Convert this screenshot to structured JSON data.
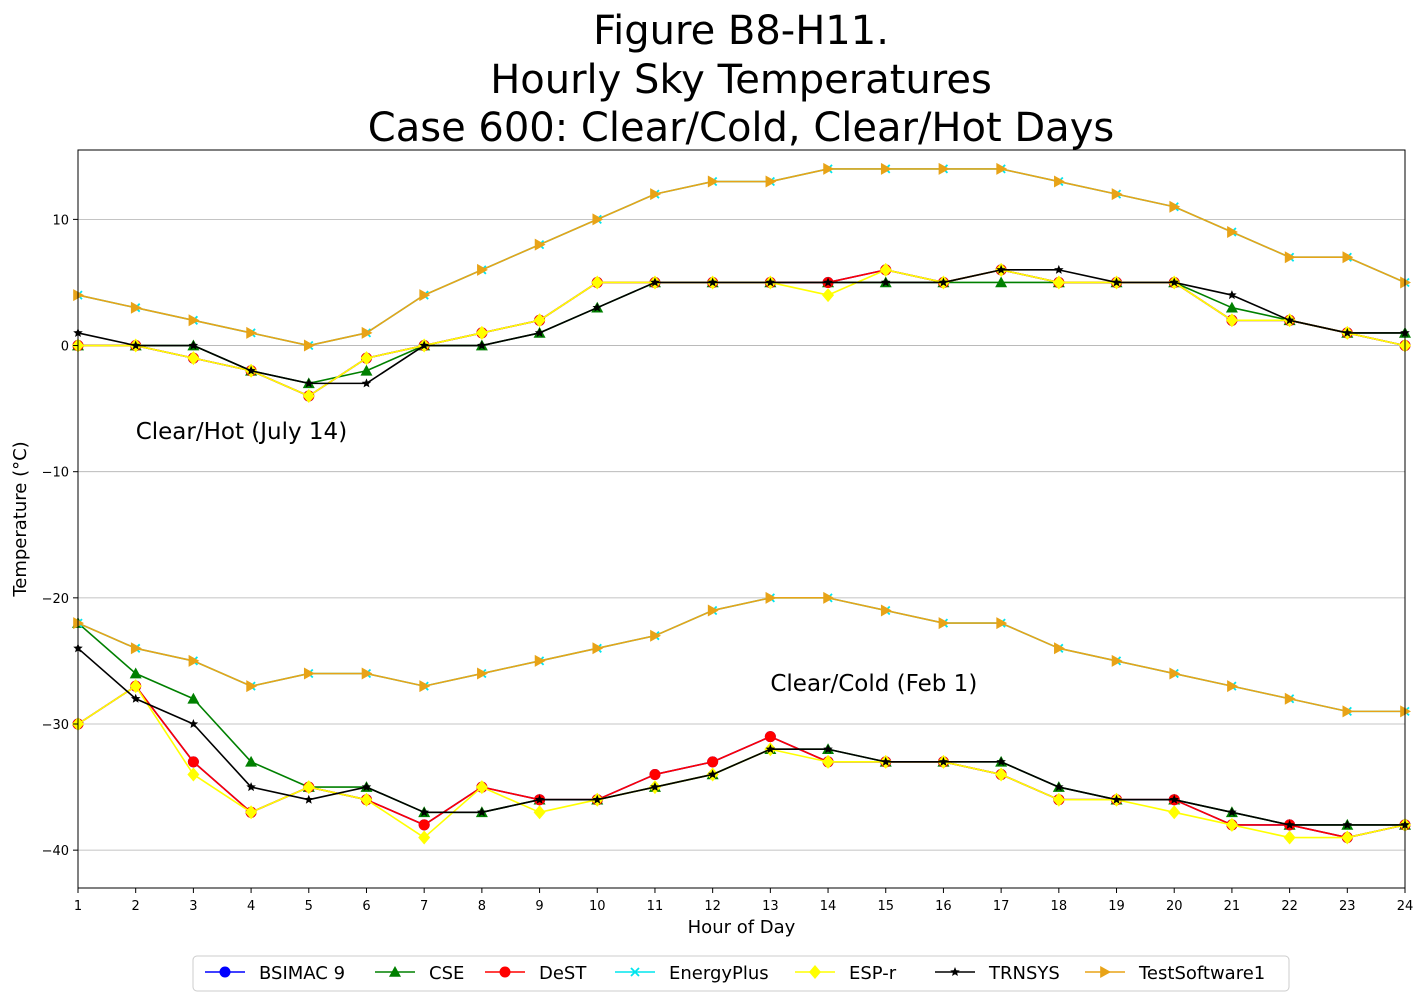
{
  "chart_data": {
    "type": "line",
    "title_lines": [
      "Figure B8-H11.",
      "Hourly Sky Temperatures",
      "Case 600: Clear/Cold, Clear/Hot Days"
    ],
    "xlabel": "Hour of Day",
    "ylabel": "Temperature (°C)",
    "xlim": [
      1,
      24
    ],
    "ylim": [
      -43,
      15.5
    ],
    "xticks": [
      1,
      2,
      3,
      4,
      5,
      6,
      7,
      8,
      9,
      10,
      11,
      12,
      13,
      14,
      15,
      16,
      17,
      18,
      19,
      20,
      21,
      22,
      23,
      24
    ],
    "yticks": [
      10,
      0,
      -10,
      -20,
      -30,
      -40
    ],
    "ytick_labels": [
      "10",
      "0",
      "−10",
      "−20",
      "−30",
      "−40"
    ],
    "grid": "horizontal",
    "legend_position": "bottom-center",
    "annotations": [
      {
        "text": "Clear/Hot (July 14)",
        "x": 2,
        "y": -7.4
      },
      {
        "text": "Clear/Cold (Feb 1)",
        "x": 13,
        "y": -27.4
      }
    ],
    "series": [
      {
        "name": "BSIMAC 9",
        "color": "#0000ff",
        "marker": "circle",
        "segments": [
          [
            -30,
            -27,
            -33,
            -37,
            -35,
            -36,
            -38,
            -35,
            -36,
            -36,
            -34,
            -33,
            -31,
            -33,
            -33,
            -33,
            -34,
            -36,
            -36,
            -36,
            -38,
            -38,
            -39,
            -38
          ],
          [
            0,
            0,
            -1,
            -2,
            -4,
            -1,
            0,
            1,
            2,
            5,
            5,
            5,
            5,
            5,
            6,
            5,
            6,
            5,
            5,
            5,
            2,
            2,
            1,
            0
          ]
        ]
      },
      {
        "name": "CSE",
        "color": "#008000",
        "marker": "triangle",
        "segments": [
          [
            -22,
            -26,
            -28,
            -33,
            -35,
            -35,
            -37,
            -37,
            -36,
            -36,
            -35,
            -34,
            -32,
            -32,
            -33,
            -33,
            -33,
            -35,
            -36,
            -36,
            -37,
            -38,
            -38,
            -38
          ],
          [
            0,
            0,
            0,
            -2,
            -3,
            -2,
            0,
            0,
            1,
            3,
            5,
            5,
            5,
            5,
            5,
            5,
            5,
            5,
            5,
            5,
            3,
            2,
            1,
            1
          ]
        ]
      },
      {
        "name": "DeST",
        "color": "#ff0000",
        "marker": "circle",
        "segments": [
          [
            -30,
            -27,
            -33,
            -37,
            -35,
            -36,
            -38,
            -35,
            -36,
            -36,
            -34,
            -33,
            -31,
            -33,
            -33,
            -33,
            -34,
            -36,
            -36,
            -36,
            -38,
            -38,
            -39,
            -38
          ],
          [
            0,
            0,
            -1,
            -2,
            -4,
            -1,
            0,
            1,
            2,
            5,
            5,
            5,
            5,
            5,
            6,
            5,
            6,
            5,
            5,
            5,
            2,
            2,
            1,
            0
          ]
        ]
      },
      {
        "name": "EnergyPlus",
        "color": "#00e5ee",
        "marker": "x",
        "segments": [
          [
            -22,
            -24,
            -25,
            -27,
            -26,
            -26,
            -27,
            -26,
            -25,
            -24,
            -23,
            -21,
            -20,
            -20,
            -21,
            -22,
            -22,
            -24,
            -25,
            -26,
            -27,
            -28,
            -29,
            -29
          ],
          [
            4,
            3,
            2,
            1,
            0,
            1,
            4,
            6,
            8,
            10,
            12,
            13,
            13,
            14,
            14,
            14,
            14,
            13,
            12,
            11,
            9,
            7,
            7,
            5
          ]
        ]
      },
      {
        "name": "ESP-r",
        "color": "#ffff00",
        "marker": "diamond",
        "segments": [
          [
            -30,
            -27,
            -34,
            -37,
            -35,
            -36,
            -39,
            -35,
            -37,
            -36,
            -35,
            -34,
            -32,
            -33,
            -33,
            -33,
            -34,
            -36,
            -36,
            -37,
            -38,
            -39,
            -39,
            -38
          ],
          [
            0,
            0,
            -1,
            -2,
            -4,
            -1,
            0,
            1,
            2,
            5,
            5,
            5,
            5,
            4,
            6,
            5,
            6,
            5,
            5,
            5,
            2,
            2,
            1,
            0
          ]
        ]
      },
      {
        "name": "TRNSYS",
        "color": "#000000",
        "marker": "star",
        "segments": [
          [
            -24,
            -28,
            -30,
            -35,
            -36,
            -35,
            -37,
            -37,
            -36,
            -36,
            -35,
            -34,
            -32,
            -32,
            -33,
            -33,
            -33,
            -35,
            -36,
            -36,
            -37,
            -38,
            -38,
            -38
          ],
          [
            1,
            0,
            0,
            -2,
            -3,
            -3,
            0,
            0,
            1,
            3,
            5,
            5,
            5,
            5,
            5,
            5,
            6,
            6,
            5,
            5,
            4,
            2,
            1,
            1
          ]
        ]
      },
      {
        "name": "TestSoftware1",
        "color": "#e8a317",
        "marker": "triangle-right",
        "segments": [
          [
            -22,
            -24,
            -25,
            -27,
            -26,
            -26,
            -27,
            -26,
            -25,
            -24,
            -23,
            -21,
            -20,
            -20,
            -21,
            -22,
            -22,
            -24,
            -25,
            -26,
            -27,
            -28,
            -29,
            -29
          ],
          [
            4,
            3,
            2,
            1,
            0,
            1,
            4,
            6,
            8,
            10,
            12,
            13,
            13,
            14,
            14,
            14,
            14,
            13,
            12,
            11,
            9,
            7,
            7,
            5
          ]
        ]
      }
    ]
  }
}
